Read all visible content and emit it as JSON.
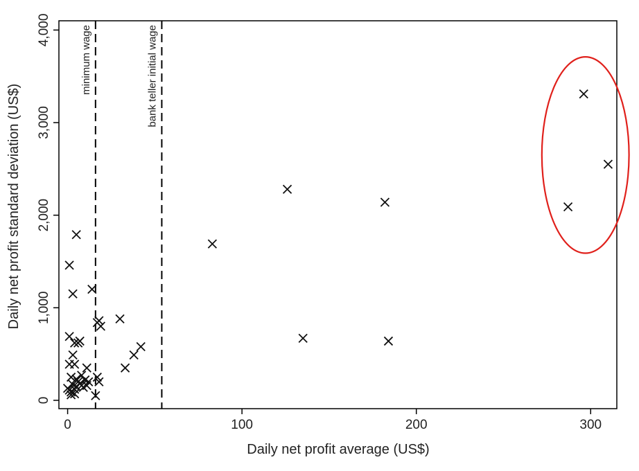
{
  "chart_data": {
    "type": "scatter",
    "title": "",
    "xlabel": "Daily net profit average (US$)",
    "ylabel": "Daily net profit standard deviation (US$)",
    "xlim": [
      -5,
      315
    ],
    "ylim": [
      -90,
      4100
    ],
    "x_ticks": [
      0,
      100,
      200,
      300
    ],
    "x_tick_labels": [
      "0",
      "100",
      "200",
      "300"
    ],
    "y_ticks": [
      0,
      1000,
      2000,
      3000,
      4000
    ],
    "y_tick_labels": [
      "0",
      "1,000",
      "2,000",
      "3,000",
      "4,000"
    ],
    "grid": false,
    "legend": "none",
    "reference_lines": [
      {
        "axis": "x",
        "value": 16,
        "label": "minimum wage"
      },
      {
        "axis": "x",
        "value": 54,
        "label": "bank teller initial wage"
      }
    ],
    "highlight": {
      "shape": "ellipse",
      "color": "#e0201b",
      "center": [
        297,
        2650
      ],
      "radius": [
        25,
        1060
      ]
    },
    "series": [
      {
        "marker": "x",
        "points": [
          [
            1,
            1460
          ],
          [
            5,
            1790
          ],
          [
            3,
            1150
          ],
          [
            14,
            1200
          ],
          [
            18,
            860
          ],
          [
            19,
            800
          ],
          [
            30,
            880
          ],
          [
            17,
            840
          ],
          [
            1,
            690
          ],
          [
            4,
            620
          ],
          [
            7,
            640
          ],
          [
            6,
            620
          ],
          [
            3,
            490
          ],
          [
            1,
            390
          ],
          [
            4,
            390
          ],
          [
            11,
            350
          ],
          [
            2,
            250
          ],
          [
            5,
            230
          ],
          [
            6,
            200
          ],
          [
            8,
            270
          ],
          [
            0,
            130
          ],
          [
            1,
            110
          ],
          [
            2,
            90
          ],
          [
            3,
            170
          ],
          [
            4,
            120
          ],
          [
            5,
            150
          ],
          [
            7,
            180
          ],
          [
            8,
            160
          ],
          [
            9,
            140
          ],
          [
            10,
            220
          ],
          [
            11,
            160
          ],
          [
            12,
            200
          ],
          [
            2,
            60
          ],
          [
            4,
            70
          ],
          [
            16,
            50
          ],
          [
            17,
            250
          ],
          [
            18,
            200
          ],
          [
            33,
            350
          ],
          [
            38,
            490
          ],
          [
            42,
            580
          ],
          [
            83,
            1690
          ],
          [
            126,
            2280
          ],
          [
            135,
            670
          ],
          [
            182,
            2140
          ],
          [
            184,
            640
          ],
          [
            287,
            2090
          ],
          [
            296,
            3310
          ],
          [
            310,
            2550
          ]
        ]
      }
    ]
  }
}
